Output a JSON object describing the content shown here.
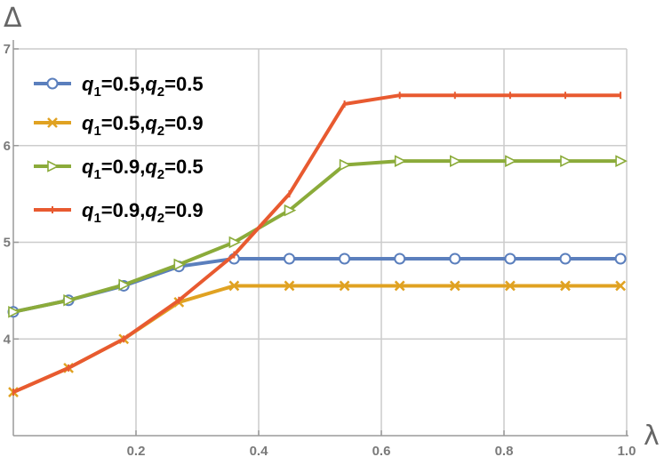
{
  "chart_data": {
    "type": "line",
    "xlabel": "λ",
    "ylabel": "Δ",
    "xlim": [
      0,
      1.0
    ],
    "ylim": [
      3.0,
      7.0
    ],
    "xticks": [
      0.2,
      0.4,
      0.6,
      0.8,
      1.0
    ],
    "xtick_labels": [
      "0.2",
      "0.4",
      "0.6",
      "0.8",
      "1.0"
    ],
    "yticks": [
      4,
      5,
      6,
      7
    ],
    "ytick_labels": [
      "4",
      "5",
      "6",
      "7"
    ],
    "grid": true,
    "legend_position": "top-left",
    "x": [
      0,
      0.09,
      0.18,
      0.27,
      0.36,
      0.45,
      0.54,
      0.63,
      0.72,
      0.81,
      0.9,
      0.99
    ],
    "series": [
      {
        "legend": {
          "q1": "q",
          "q1_sub": "1",
          "q1_val": "=0.5,",
          "q2": "q",
          "q2_sub": "2",
          "q2_val": "=0.5"
        },
        "color": "#5b7fbd",
        "marker": "circle",
        "values": [
          4.28,
          4.4,
          4.55,
          4.75,
          4.83,
          4.83,
          4.83,
          4.83,
          4.83,
          4.83,
          4.83,
          4.83
        ]
      },
      {
        "legend": {
          "q1": "q",
          "q1_sub": "1",
          "q1_val": "=0.5,",
          "q2": "q",
          "q2_sub": "2",
          "q2_val": "=0.9"
        },
        "color": "#e0a222",
        "marker": "x",
        "values": [
          3.45,
          3.7,
          4.0,
          4.38,
          4.55,
          4.55,
          4.55,
          4.55,
          4.55,
          4.55,
          4.55,
          4.55
        ]
      },
      {
        "legend": {
          "q1": "q",
          "q1_sub": "1",
          "q1_val": "=0.9,",
          "q2": "q",
          "q2_sub": "2",
          "q2_val": "=0.5"
        },
        "color": "#8bab3a",
        "marker": "triangle-right",
        "values": [
          4.28,
          4.4,
          4.56,
          4.77,
          5.0,
          5.33,
          5.8,
          5.84,
          5.84,
          5.84,
          5.84,
          5.84
        ]
      },
      {
        "legend": {
          "q1": "q",
          "q1_sub": "1",
          "q1_val": "=0.9,",
          "q2": "q",
          "q2_sub": "2",
          "q2_val": "=0.9"
        },
        "color": "#e85a30",
        "marker": "plus",
        "values": [
          3.45,
          3.7,
          4.0,
          4.4,
          4.87,
          5.5,
          6.43,
          6.52,
          6.52,
          6.52,
          6.52,
          6.52
        ]
      }
    ]
  }
}
